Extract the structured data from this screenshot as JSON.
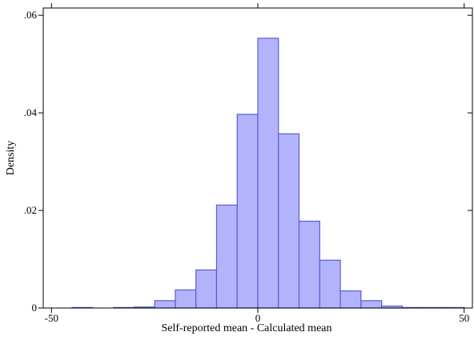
{
  "chart_data": {
    "type": "bar",
    "title": "",
    "xlabel": "Self-reported mean - Calculated mean",
    "ylabel": "Density",
    "xlim": [
      -52,
      52
    ],
    "ylim": [
      0,
      0.0615
    ],
    "x_ticks": [
      {
        "value": -50,
        "label": "-50"
      },
      {
        "value": 0,
        "label": "0"
      },
      {
        "value": 50,
        "label": "50"
      }
    ],
    "y_ticks": [
      {
        "value": 0,
        "label": "0"
      },
      {
        "value": 0.02,
        "label": ".02"
      },
      {
        "value": 0.04,
        "label": ".04"
      },
      {
        "value": 0.06,
        "label": ".06"
      }
    ],
    "grid": false,
    "legend": "none",
    "bin_width": 5,
    "bins": [
      {
        "start": -45,
        "end": -40,
        "density": 0.0001
      },
      {
        "start": -40,
        "end": -35,
        "density": 0.0
      },
      {
        "start": -35,
        "end": -30,
        "density": 0.0001
      },
      {
        "start": -30,
        "end": -25,
        "density": 0.0002
      },
      {
        "start": -25,
        "end": -20,
        "density": 0.0015
      },
      {
        "start": -20,
        "end": -15,
        "density": 0.0037
      },
      {
        "start": -15,
        "end": -10,
        "density": 0.0078
      },
      {
        "start": -10,
        "end": -5,
        "density": 0.0211
      },
      {
        "start": -5,
        "end": 0,
        "density": 0.0397
      },
      {
        "start": 0,
        "end": 5,
        "density": 0.0553
      },
      {
        "start": 5,
        "end": 10,
        "density": 0.0357
      },
      {
        "start": 10,
        "end": 15,
        "density": 0.0178
      },
      {
        "start": 15,
        "end": 20,
        "density": 0.0098
      },
      {
        "start": 20,
        "end": 25,
        "density": 0.0035
      },
      {
        "start": 25,
        "end": 30,
        "density": 0.0015
      },
      {
        "start": 30,
        "end": 35,
        "density": 0.0004
      },
      {
        "start": 35,
        "end": 40,
        "density": 0.0001
      },
      {
        "start": 40,
        "end": 45,
        "density": 0.0001
      },
      {
        "start": 45,
        "end": 50,
        "density": 0.0001
      }
    ],
    "colors": {
      "bar_fill": "#b3b3fb",
      "bar_stroke": "#5b5bd6",
      "axis": "#000000"
    }
  }
}
